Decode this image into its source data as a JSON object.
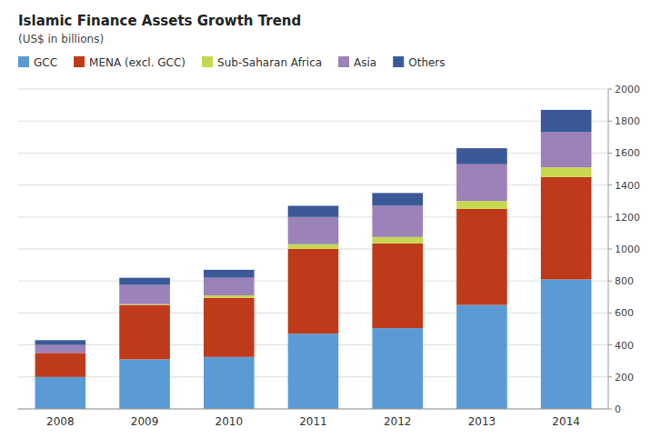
{
  "chart_data": {
    "type": "bar",
    "stacked": true,
    "title": "Islamic Finance Assets Growth Trend",
    "subtitle": "(US$ in billions)",
    "categories": [
      "2008",
      "2009",
      "2010",
      "2011",
      "2012",
      "2013",
      "2014"
    ],
    "series": [
      {
        "name": "GCC",
        "color": "#5B9BD5",
        "values": [
          200,
          310,
          325,
          470,
          505,
          650,
          810
        ]
      },
      {
        "name": "MENA (excl. GCC)",
        "color": "#BF3A1A",
        "values": [
          150,
          340,
          370,
          530,
          530,
          600,
          640
        ]
      },
      {
        "name": "Sub-Saharan Africa",
        "color": "#C6D850",
        "values": [
          0,
          5,
          15,
          30,
          40,
          50,
          60
        ]
      },
      {
        "name": "Asia",
        "color": "#9B82B8",
        "values": [
          50,
          120,
          110,
          170,
          195,
          230,
          220
        ]
      },
      {
        "name": "Others",
        "color": "#3B5998",
        "values": [
          30,
          45,
          50,
          70,
          80,
          100,
          140
        ]
      }
    ],
    "ylim": [
      0,
      2000
    ],
    "yticks": [
      0,
      200,
      400,
      600,
      800,
      1000,
      1200,
      1400,
      1600,
      1800,
      2000
    ],
    "grid": true,
    "legend": "upper left"
  }
}
